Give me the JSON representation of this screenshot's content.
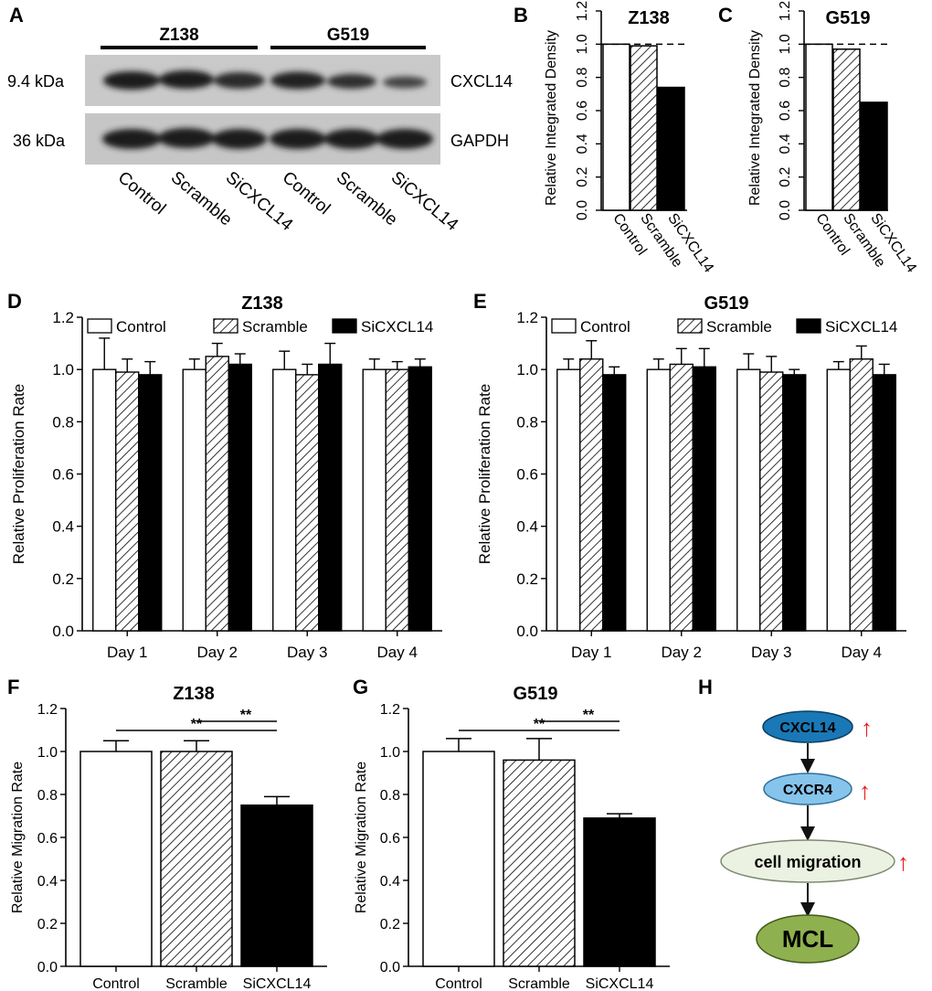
{
  "panel_letters": [
    "A",
    "B",
    "C",
    "D",
    "E",
    "F",
    "G",
    "H"
  ],
  "blot": {
    "groups": [
      "Z138",
      "G519"
    ],
    "rows": [
      {
        "weight": "9.4 kDa",
        "protein": "CXCL14"
      },
      {
        "weight": "36 kDa",
        "protein": "GAPDH"
      }
    ],
    "lanes": [
      "Control",
      "Scramble",
      "SiCXCL14",
      "Control",
      "Scramble",
      "SiCXCL14"
    ]
  },
  "diagram": {
    "nodes": [
      "CXCL14",
      "CXCR4",
      "cell migration",
      "MCL"
    ],
    "up_marks": [
      "↑",
      "↑",
      "↑"
    ],
    "colors": {
      "cxcl14": "#1a78b6",
      "cxcr4": "#86c4ec",
      "migration": "#ecf2e2",
      "mcl": "#8fb04e",
      "arrow_up": "#e8191b"
    }
  },
  "chart_data": [
    {
      "panel": "B",
      "type": "bar",
      "title": "Z138",
      "ylabel": "Relative Integrated Density",
      "categories": [
        "Control",
        "Scramble",
        "SiCXCL14"
      ],
      "values": [
        1.0,
        0.99,
        0.74
      ],
      "ylim": [
        0,
        1.2
      ],
      "yticks": [
        "0.0",
        "0.2",
        "0.4",
        "0.6",
        "0.8",
        "1.0",
        "1.2"
      ],
      "reference_line": 1.0
    },
    {
      "panel": "C",
      "type": "bar",
      "title": "G519",
      "ylabel": "Relative Integrated Density",
      "categories": [
        "Control",
        "Scramble",
        "SiCXCL14"
      ],
      "values": [
        1.0,
        0.97,
        0.65
      ],
      "ylim": [
        0,
        1.2
      ],
      "yticks": [
        "0.0",
        "0.2",
        "0.4",
        "0.6",
        "0.8",
        "1.0",
        "1.2"
      ],
      "reference_line": 1.0
    },
    {
      "panel": "D",
      "type": "bar",
      "title": "Z138",
      "ylabel": "Relative Proliferation Rate",
      "categories": [
        "Day 1",
        "Day 2",
        "Day 3",
        "Day 4"
      ],
      "legend": [
        "Control",
        "Scramble",
        "SiCXCL14"
      ],
      "series": [
        {
          "name": "Control",
          "values": [
            1.0,
            1.0,
            1.0,
            1.0
          ],
          "errors": [
            0.12,
            0.04,
            0.07,
            0.04
          ]
        },
        {
          "name": "Scramble",
          "values": [
            0.99,
            1.05,
            0.98,
            1.0
          ],
          "errors": [
            0.05,
            0.05,
            0.04,
            0.03
          ]
        },
        {
          "name": "SiCXCL14",
          "values": [
            0.98,
            1.02,
            1.02,
            1.01
          ],
          "errors": [
            0.05,
            0.04,
            0.08,
            0.03
          ]
        }
      ],
      "ylim": [
        0,
        1.2
      ],
      "yticks": [
        "0.0",
        "0.2",
        "0.4",
        "0.6",
        "0.8",
        "1.0",
        "1.2"
      ]
    },
    {
      "panel": "E",
      "type": "bar",
      "title": "G519",
      "ylabel": "Relative Proliferation Rate",
      "categories": [
        "Day 1",
        "Day 2",
        "Day 3",
        "Day 4"
      ],
      "legend": [
        "Control",
        "Scramble",
        "SiCXCL14"
      ],
      "series": [
        {
          "name": "Control",
          "values": [
            1.0,
            1.0,
            1.0,
            1.0
          ],
          "errors": [
            0.04,
            0.04,
            0.06,
            0.03
          ]
        },
        {
          "name": "Scramble",
          "values": [
            1.04,
            1.02,
            0.99,
            1.04
          ],
          "errors": [
            0.07,
            0.06,
            0.06,
            0.05
          ]
        },
        {
          "name": "SiCXCL14",
          "values": [
            0.98,
            1.01,
            0.98,
            0.98
          ],
          "errors": [
            0.03,
            0.07,
            0.02,
            0.04
          ]
        }
      ],
      "ylim": [
        0,
        1.2
      ],
      "yticks": [
        "0.0",
        "0.2",
        "0.4",
        "0.6",
        "0.8",
        "1.0",
        "1.2"
      ]
    },
    {
      "panel": "F",
      "type": "bar",
      "title": "Z138",
      "ylabel": "Relative Migration Rate",
      "categories": [
        "Control",
        "Scramble",
        "SiCXCL14"
      ],
      "values": [
        1.0,
        1.0,
        0.75
      ],
      "errors": [
        0.05,
        0.05,
        0.04
      ],
      "ylim": [
        0,
        1.2
      ],
      "yticks": [
        "0.0",
        "0.2",
        "0.4",
        "0.6",
        "0.8",
        "1.0",
        "1.2"
      ],
      "significance": [
        {
          "from": 0,
          "to": 2,
          "label": "**"
        },
        {
          "from": 1,
          "to": 2,
          "label": "**"
        }
      ]
    },
    {
      "panel": "G",
      "type": "bar",
      "title": "G519",
      "ylabel": "Relative Migration Rate",
      "categories": [
        "Control",
        "Scramble",
        "SiCXCL14"
      ],
      "values": [
        1.0,
        0.96,
        0.69
      ],
      "errors": [
        0.06,
        0.1,
        0.02
      ],
      "ylim": [
        0,
        1.2
      ],
      "yticks": [
        "0.0",
        "0.2",
        "0.4",
        "0.6",
        "0.8",
        "1.0",
        "1.2"
      ],
      "significance": [
        {
          "from": 0,
          "to": 2,
          "label": "**"
        },
        {
          "from": 1,
          "to": 2,
          "label": "**"
        }
      ]
    }
  ]
}
